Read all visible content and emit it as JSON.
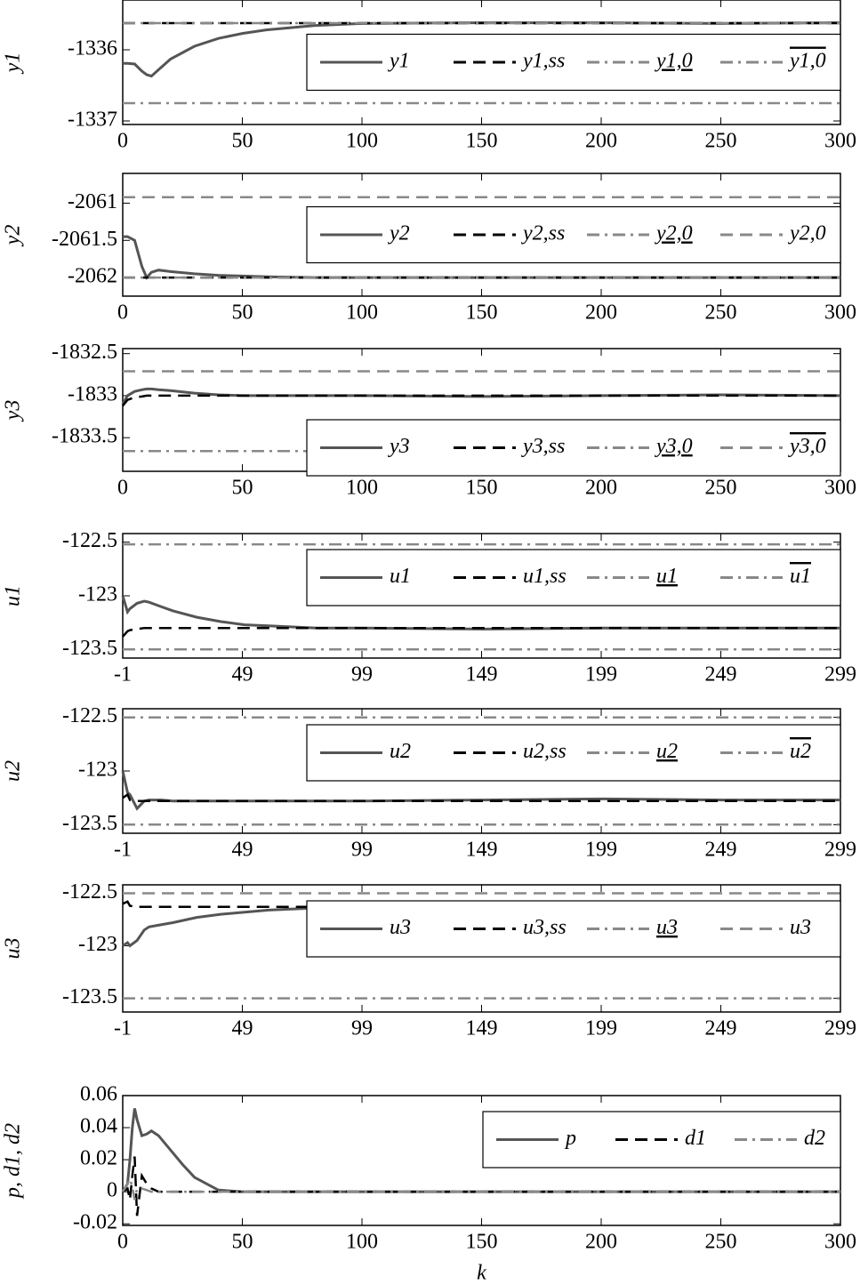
{
  "chart_data": [
    {
      "type": "line",
      "ylabel": "y1",
      "legend": "center right",
      "x": [
        0,
        2,
        5,
        8,
        10,
        12,
        15,
        20,
        30,
        40,
        50,
        60,
        80,
        100,
        150,
        200,
        250,
        300
      ],
      "xlim": [
        0,
        300
      ],
      "xticks": [
        0,
        50,
        100,
        150,
        200,
        250,
        300
      ],
      "ylim": [
        -1337.05,
        -1335.3
      ],
      "yticks": [
        -1337,
        -1336
      ],
      "series": [
        {
          "name": "y1",
          "color": "#555555",
          "dash": "solid",
          "values": [
            -1336.19,
            -1336.19,
            -1336.2,
            -1336.3,
            -1336.35,
            -1336.37,
            -1336.28,
            -1336.13,
            -1335.95,
            -1335.84,
            -1335.77,
            -1335.72,
            -1335.66,
            -1335.63,
            -1335.62,
            -1335.62,
            -1335.63,
            -1335.62
          ]
        },
        {
          "name": "y1,ss",
          "color": "#000000",
          "dash": "dashed",
          "values": [
            -1335.625,
            -1335.625,
            -1335.625,
            -1335.625,
            -1335.625,
            -1335.625,
            -1335.625,
            -1335.625,
            -1335.625,
            -1335.625,
            -1335.625,
            -1335.625,
            -1335.625,
            -1335.625,
            -1335.625,
            -1335.625,
            -1335.625,
            -1335.625
          ]
        },
        {
          "name": "y1,0",
          "color": "#888888",
          "dash": "dashdot",
          "decoration": "underline",
          "values": [
            -1336.75,
            -1336.75,
            -1336.75,
            -1336.75,
            -1336.75,
            -1336.75,
            -1336.75,
            -1336.75,
            -1336.75,
            -1336.75,
            -1336.75,
            -1336.75,
            -1336.75,
            -1336.75,
            -1336.75,
            -1336.75,
            -1336.75,
            -1336.75
          ]
        },
        {
          "name": "y1,0",
          "color": "#888888",
          "dash": "dashdot",
          "decoration": "overline",
          "values": [
            -1335.625,
            -1335.625,
            -1335.625,
            -1335.625,
            -1335.625,
            -1335.625,
            -1335.625,
            -1335.625,
            -1335.625,
            -1335.625,
            -1335.625,
            -1335.625,
            -1335.625,
            -1335.625,
            -1335.625,
            -1335.625,
            -1335.625,
            -1335.625
          ]
        }
      ]
    },
    {
      "type": "line",
      "ylabel": "y2",
      "legend": "center right",
      "x": [
        0,
        2,
        5,
        8,
        10,
        12,
        15,
        20,
        30,
        40,
        50,
        60,
        80,
        100,
        150,
        200,
        250,
        300
      ],
      "xlim": [
        0,
        300
      ],
      "xticks": [
        0,
        50,
        100,
        150,
        200,
        250,
        300
      ],
      "ylim": [
        -2062.25,
        -2060.6
      ],
      "yticks": [
        -2062,
        -2061.5,
        -2061
      ],
      "series": [
        {
          "name": "y2",
          "color": "#555555",
          "dash": "solid",
          "values": [
            -2061.45,
            -2061.45,
            -2061.5,
            -2061.85,
            -2062,
            -2061.93,
            -2061.9,
            -2061.92,
            -2061.95,
            -2061.97,
            -2061.98,
            -2061.99,
            -2062,
            -2062,
            -2062,
            -2062,
            -2062,
            -2062
          ]
        },
        {
          "name": "y2,ss",
          "color": "#000000",
          "dash": "dashed",
          "values": [
            -2062,
            -2062,
            -2062,
            -2062,
            -2062,
            -2062,
            -2062,
            -2062,
            -2062,
            -2062,
            -2062,
            -2062,
            -2062,
            -2062,
            -2062,
            -2062,
            -2062,
            -2062
          ]
        },
        {
          "name": "y2,0",
          "color": "#888888",
          "dash": "dashdot",
          "decoration": "underline",
          "values": [
            -2062,
            -2062,
            -2062,
            -2062,
            -2062,
            -2062,
            -2062,
            -2062,
            -2062,
            -2062,
            -2062,
            -2062,
            -2062,
            -2062,
            -2062,
            -2062,
            -2062,
            -2062
          ]
        },
        {
          "name": "y2,0",
          "color": "#888888",
          "dash": "dashed",
          "values": [
            -2060.92,
            -2060.92,
            -2060.92,
            -2060.92,
            -2060.92,
            -2060.92,
            -2060.92,
            -2060.92,
            -2060.92,
            -2060.92,
            -2060.92,
            -2060.92,
            -2060.92,
            -2060.92,
            -2060.92,
            -2060.92,
            -2060.92,
            -2060.92
          ]
        }
      ]
    },
    {
      "type": "line",
      "ylabel": "y3",
      "legend": "lower right",
      "x": [
        0,
        2,
        5,
        8,
        10,
        12,
        15,
        20,
        30,
        40,
        50,
        60,
        80,
        100,
        150,
        200,
        250,
        300
      ],
      "xlim": [
        0,
        300
      ],
      "xticks": [
        0,
        50,
        100,
        150,
        200,
        250,
        300
      ],
      "ylim": [
        -1833.9,
        -1832.44
      ],
      "yticks": [
        -1833.5,
        -1833,
        -1832.5
      ],
      "series": [
        {
          "name": "y3",
          "color": "#555555",
          "dash": "solid",
          "values": [
            -1833.1,
            -1833.0,
            -1832.95,
            -1832.93,
            -1832.92,
            -1832.92,
            -1832.93,
            -1832.94,
            -1832.97,
            -1832.99,
            -1833.0,
            -1833.0,
            -1833.0,
            -1833.0,
            -1833.01,
            -1833.0,
            -1832.99,
            -1833.0
          ]
        },
        {
          "name": "y3,ss",
          "color": "#000000",
          "dash": "dashed",
          "values": [
            -1833.12,
            -1833.05,
            -1833.02,
            -1833.01,
            -1833,
            -1833,
            -1833,
            -1833,
            -1833,
            -1833,
            -1833,
            -1833,
            -1833,
            -1833,
            -1833,
            -1833,
            -1833,
            -1833
          ]
        },
        {
          "name": "y3,0",
          "color": "#888888",
          "dash": "dashdot",
          "decoration": "underline",
          "values": [
            -1833.66,
            -1833.66,
            -1833.66,
            -1833.66,
            -1833.66,
            -1833.66,
            -1833.66,
            -1833.66,
            -1833.66,
            -1833.66,
            -1833.66,
            -1833.66,
            -1833.66,
            -1833.66,
            -1833.66,
            -1833.66,
            -1833.66,
            -1833.66
          ]
        },
        {
          "name": "y3,0",
          "color": "#888888",
          "dash": "dashed",
          "decoration": "overline",
          "values": [
            -1832.71,
            -1832.71,
            -1832.71,
            -1832.71,
            -1832.71,
            -1832.71,
            -1832.71,
            -1832.71,
            -1832.71,
            -1832.71,
            -1832.71,
            -1832.71,
            -1832.71,
            -1832.71,
            -1832.71,
            -1832.71,
            -1832.71,
            -1832.71
          ]
        }
      ]
    },
    {
      "type": "line",
      "ylabel": "u1",
      "legend": "upper right",
      "x": [
        -1,
        1,
        2,
        5,
        8,
        10,
        15,
        20,
        30,
        40,
        50,
        60,
        80,
        100,
        150,
        200,
        250,
        299
      ],
      "xlim": [
        -1,
        299
      ],
      "xticks": [
        -1,
        49,
        99,
        149,
        199,
        249,
        299
      ],
      "ylim": [
        -123.58,
        -122.42
      ],
      "yticks": [
        -123.5,
        -123,
        -122.5
      ],
      "series": [
        {
          "name": "u1",
          "color": "#555555",
          "dash": "solid",
          "values": [
            -123.0,
            -123.15,
            -123.12,
            -123.07,
            -123.05,
            -123.06,
            -123.1,
            -123.14,
            -123.2,
            -123.24,
            -123.27,
            -123.28,
            -123.3,
            -123.3,
            -123.31,
            -123.3,
            -123.3,
            -123.3
          ]
        },
        {
          "name": "u1,ss",
          "color": "#000000",
          "dash": "dashed",
          "values": [
            -123.38,
            -123.33,
            -123.32,
            -123.31,
            -123.3,
            -123.3,
            -123.3,
            -123.3,
            -123.3,
            -123.3,
            -123.3,
            -123.3,
            -123.3,
            -123.3,
            -123.3,
            -123.3,
            -123.3,
            -123.3
          ]
        },
        {
          "name": "u1",
          "color": "#888888",
          "dash": "dashdot",
          "decoration": "underline",
          "values": [
            -123.5,
            -123.5,
            -123.5,
            -123.5,
            -123.5,
            -123.5,
            -123.5,
            -123.5,
            -123.5,
            -123.5,
            -123.5,
            -123.5,
            -123.5,
            -123.5,
            -123.5,
            -123.5,
            -123.5,
            -123.5
          ]
        },
        {
          "name": "u1",
          "color": "#888888",
          "dash": "dashdot",
          "decoration": "overline",
          "values": [
            -122.52,
            -122.52,
            -122.52,
            -122.52,
            -122.52,
            -122.52,
            -122.52,
            -122.52,
            -122.52,
            -122.52,
            -122.52,
            -122.52,
            -122.52,
            -122.52,
            -122.52,
            -122.52,
            -122.52,
            -122.52
          ]
        }
      ]
    },
    {
      "type": "line",
      "ylabel": "u2",
      "legend": "upper right",
      "x": [
        -1,
        1,
        2,
        5,
        8,
        10,
        15,
        20,
        30,
        40,
        50,
        60,
        80,
        100,
        150,
        200,
        250,
        299
      ],
      "xlim": [
        -1,
        299
      ],
      "xticks": [
        -1,
        49,
        99,
        149,
        199,
        249,
        299
      ],
      "ylim": [
        -123.58,
        -122.42
      ],
      "yticks": [
        -123.5,
        -123,
        -122.5
      ],
      "series": [
        {
          "name": "u2",
          "color": "#555555",
          "dash": "solid",
          "values": [
            -123.0,
            -123.2,
            -123.22,
            -123.35,
            -123.28,
            -123.27,
            -123.27,
            -123.28,
            -123.28,
            -123.28,
            -123.28,
            -123.28,
            -123.28,
            -123.28,
            -123.27,
            -123.26,
            -123.27,
            -123.27
          ]
        },
        {
          "name": "u2,ss",
          "color": "#000000",
          "dash": "dashed",
          "values": [
            -123.25,
            -123.22,
            -123.27,
            -123.28,
            -123.28,
            -123.28,
            -123.28,
            -123.28,
            -123.28,
            -123.28,
            -123.28,
            -123.28,
            -123.28,
            -123.28,
            -123.28,
            -123.28,
            -123.28,
            -123.28
          ]
        },
        {
          "name": "u2",
          "color": "#888888",
          "dash": "dashdot",
          "decoration": "underline",
          "values": [
            -123.5,
            -123.5,
            -123.5,
            -123.5,
            -123.5,
            -123.5,
            -123.5,
            -123.5,
            -123.5,
            -123.5,
            -123.5,
            -123.5,
            -123.5,
            -123.5,
            -123.5,
            -123.5,
            -123.5,
            -123.5
          ]
        },
        {
          "name": "u2",
          "color": "#888888",
          "dash": "dashdot",
          "decoration": "overline",
          "values": [
            -122.5,
            -122.5,
            -122.5,
            -122.5,
            -122.5,
            -122.5,
            -122.5,
            -122.5,
            -122.5,
            -122.5,
            -122.5,
            -122.5,
            -122.5,
            -122.5,
            -122.5,
            -122.5,
            -122.5,
            -122.5
          ]
        }
      ]
    },
    {
      "type": "line",
      "ylabel": "u3",
      "legend": "upper right",
      "x": [
        -1,
        1,
        2,
        5,
        8,
        10,
        15,
        20,
        30,
        40,
        50,
        60,
        80,
        100,
        150,
        200,
        250,
        299
      ],
      "xlim": [
        -1,
        299
      ],
      "xticks": [
        -1,
        49,
        99,
        149,
        199,
        249,
        299
      ],
      "ylim": [
        -123.63,
        -122.42
      ],
      "yticks": [
        -123.5,
        -123,
        -122.5
      ],
      "series": [
        {
          "name": "u3",
          "color": "#555555",
          "dash": "solid",
          "values": [
            -123.0,
            -122.97,
            -123.0,
            -122.95,
            -122.85,
            -122.82,
            -122.8,
            -122.78,
            -122.73,
            -122.7,
            -122.68,
            -122.66,
            -122.64,
            -122.63,
            -122.64,
            -122.62,
            -122.63,
            -122.63
          ]
        },
        {
          "name": "u3,ss",
          "color": "#000000",
          "dash": "dashed",
          "values": [
            -122.6,
            -122.58,
            -122.62,
            -122.63,
            -122.63,
            -122.63,
            -122.63,
            -122.63,
            -122.63,
            -122.63,
            -122.63,
            -122.63,
            -122.63,
            -122.63,
            -122.63,
            -122.63,
            -122.63,
            -122.63
          ]
        },
        {
          "name": "u3",
          "color": "#888888",
          "dash": "dashdot",
          "decoration": "underline",
          "values": [
            -123.5,
            -123.5,
            -123.5,
            -123.5,
            -123.5,
            -123.5,
            -123.5,
            -123.5,
            -123.5,
            -123.5,
            -123.5,
            -123.5,
            -123.5,
            -123.5,
            -123.5,
            -123.5,
            -123.5,
            -123.5
          ]
        },
        {
          "name": "u3",
          "color": "#888888",
          "dash": "dashed",
          "values": [
            -122.5,
            -122.5,
            -122.5,
            -122.5,
            -122.5,
            -122.5,
            -122.5,
            -122.5,
            -122.5,
            -122.5,
            -122.5,
            -122.5,
            -122.5,
            -122.5,
            -122.5,
            -122.5,
            -122.5,
            -122.5
          ]
        }
      ]
    },
    {
      "type": "line",
      "ylabel": "p, d1, d2",
      "xlabel": "k",
      "legend": "upper right",
      "x": [
        0,
        2,
        3,
        4,
        5,
        6,
        8,
        10,
        12,
        15,
        20,
        25,
        30,
        40,
        50,
        100,
        200,
        300
      ],
      "xlim": [
        0,
        300
      ],
      "xticks": [
        0,
        50,
        100,
        150,
        200,
        250,
        300
      ],
      "ylim": [
        -0.021,
        0.06
      ],
      "yticks": [
        -0.02,
        0,
        0.02,
        0.04,
        0.06
      ],
      "series": [
        {
          "name": "p",
          "color": "#555555",
          "dash": "solid",
          "values": [
            0,
            0.005,
            0.02,
            0.04,
            0.052,
            0.045,
            0.035,
            0.036,
            0.038,
            0.035,
            0.026,
            0.017,
            0.009,
            0.001,
            0,
            0,
            0,
            0
          ]
        },
        {
          "name": "d1",
          "color": "#000000",
          "dash": "dashed",
          "values": [
            0,
            0.002,
            -0.005,
            0.01,
            0.022,
            -0.015,
            0.01,
            0.005,
            0.002,
            0,
            0,
            0,
            0,
            0,
            0,
            0,
            0,
            0
          ]
        },
        {
          "name": "d2",
          "color": "#888888",
          "dash": "dashdot",
          "values": [
            0,
            0.005,
            0.008,
            0.003,
            -0.005,
            0.002,
            0.002,
            0.001,
            0,
            0,
            0,
            0,
            0,
            0,
            0,
            0,
            0,
            0
          ]
        }
      ]
    }
  ]
}
